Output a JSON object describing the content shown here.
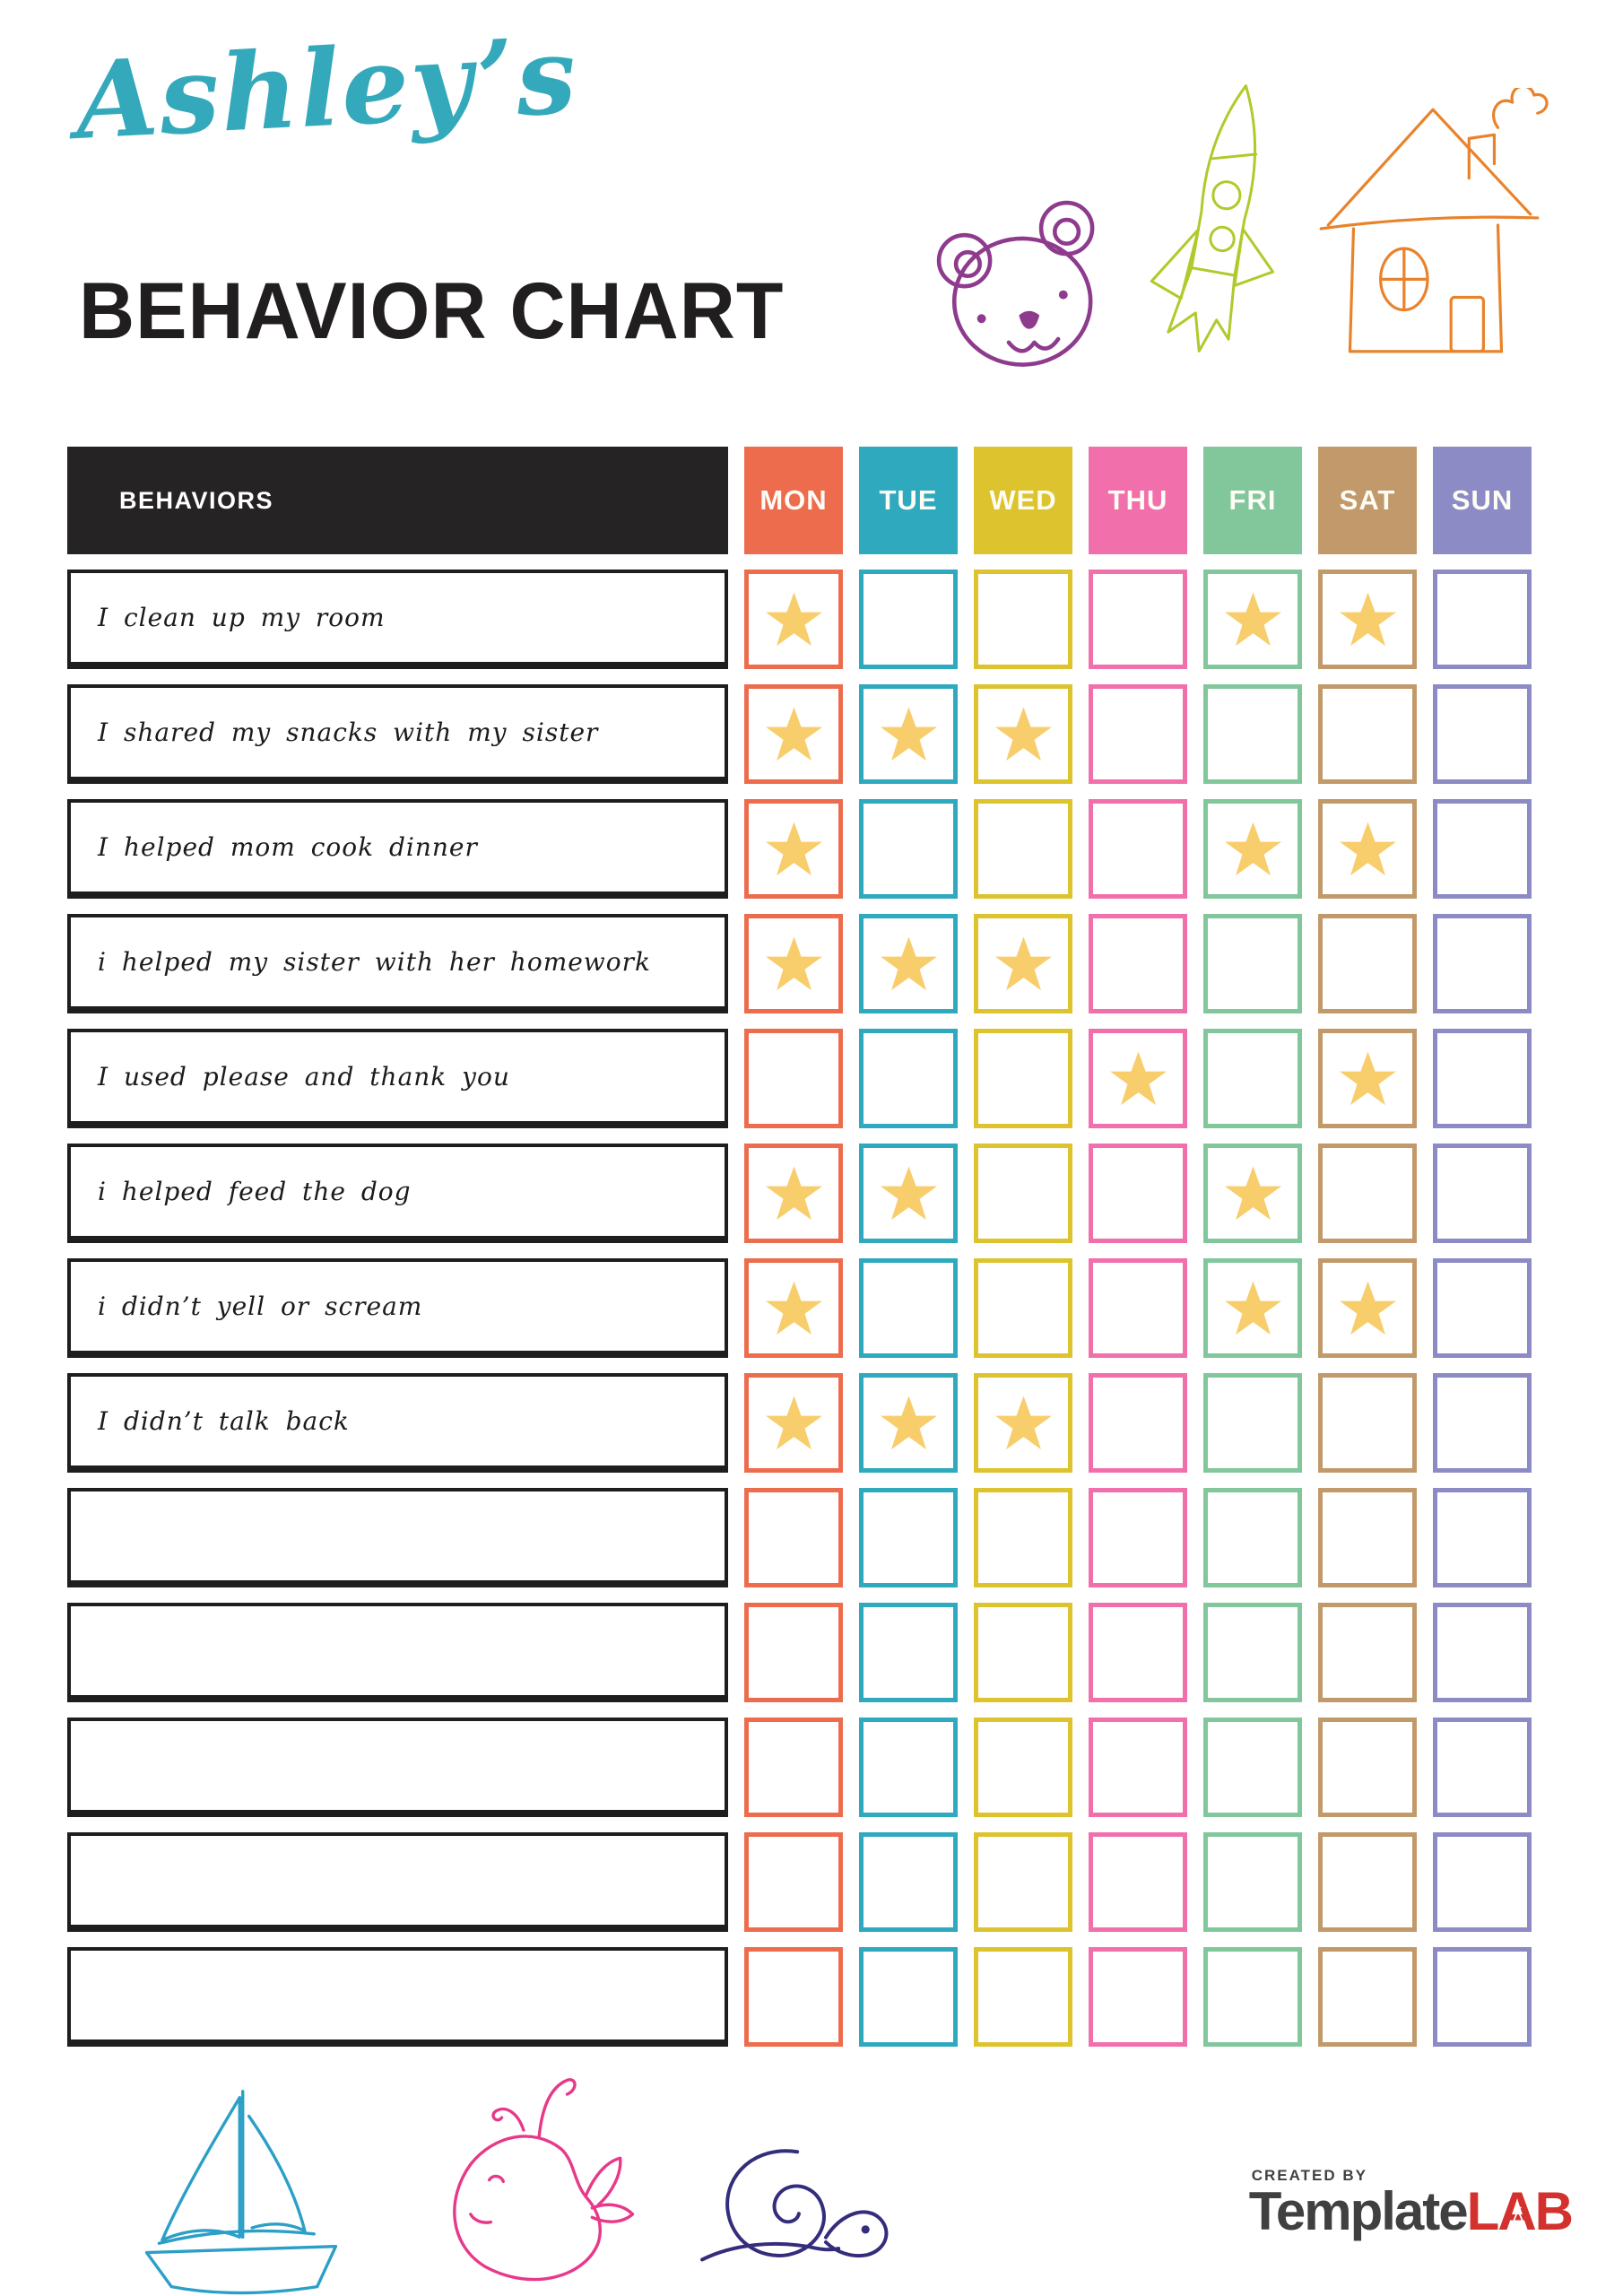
{
  "header": {
    "script_title": "Ashley’s",
    "main_title": "BEHAVIOR CHART"
  },
  "table": {
    "behaviors_label": "BEHAVIORS",
    "days": [
      {
        "label": "MON",
        "color": "#ED6C4E"
      },
      {
        "label": "TUE",
        "color": "#2FA9BE"
      },
      {
        "label": "WED",
        "color": "#DDC32E"
      },
      {
        "label": "THU",
        "color": "#F170AC"
      },
      {
        "label": "FRI",
        "color": "#82C79C"
      },
      {
        "label": "SAT",
        "color": "#C1996A"
      },
      {
        "label": "SUN",
        "color": "#8C8BC5"
      }
    ],
    "star_color": "#F8CD6B",
    "rows": [
      {
        "behavior": "I clean up my room",
        "stars": [
          "MON",
          "FRI",
          "SAT"
        ]
      },
      {
        "behavior": "I shared my snacks with my sister",
        "stars": [
          "MON",
          "TUE",
          "WED"
        ]
      },
      {
        "behavior": "I helped mom cook dinner",
        "stars": [
          "MON",
          "FRI",
          "SAT"
        ]
      },
      {
        "behavior": "i helped my sister with her homework",
        "stars": [
          "MON",
          "TUE",
          "WED"
        ]
      },
      {
        "behavior": "I used please and thank you",
        "stars": [
          "THU",
          "SAT"
        ]
      },
      {
        "behavior": "i helped feed the dog",
        "stars": [
          "MON",
          "TUE",
          "FRI"
        ]
      },
      {
        "behavior": "i didn’t yell or scream",
        "stars": [
          "MON",
          "FRI",
          "SAT"
        ]
      },
      {
        "behavior": "I didn’t talk back",
        "stars": [
          "MON",
          "TUE",
          "WED"
        ]
      },
      {
        "behavior": "",
        "stars": []
      },
      {
        "behavior": "",
        "stars": []
      },
      {
        "behavior": "",
        "stars": []
      },
      {
        "behavior": "",
        "stars": []
      },
      {
        "behavior": "",
        "stars": []
      }
    ]
  },
  "footer": {
    "created_by": "CREATED BY",
    "brand_name": "Template",
    "brand_l": "L",
    "brand_a": "A",
    "brand_b": "B"
  },
  "decorations": {
    "top_doodles": [
      "bear-doodle",
      "rocket-doodle",
      "house-doodle"
    ],
    "bottom_doodles": [
      "sailboat-doodle",
      "whale-doodle",
      "snail-doodle"
    ],
    "colors": {
      "title_script": "#35A9BC",
      "title_main": "#211E1F",
      "header_bg": "#262324",
      "row_border": "#1E1E1E",
      "bear": "#8E3B8E",
      "rocket": "#AFCA2A",
      "house": "#E8832C",
      "sailboat": "#2B9FC7",
      "whale": "#E8388A",
      "snail": "#332D7B",
      "logo_dark": "#404040",
      "logo_red": "#D3312D"
    }
  }
}
